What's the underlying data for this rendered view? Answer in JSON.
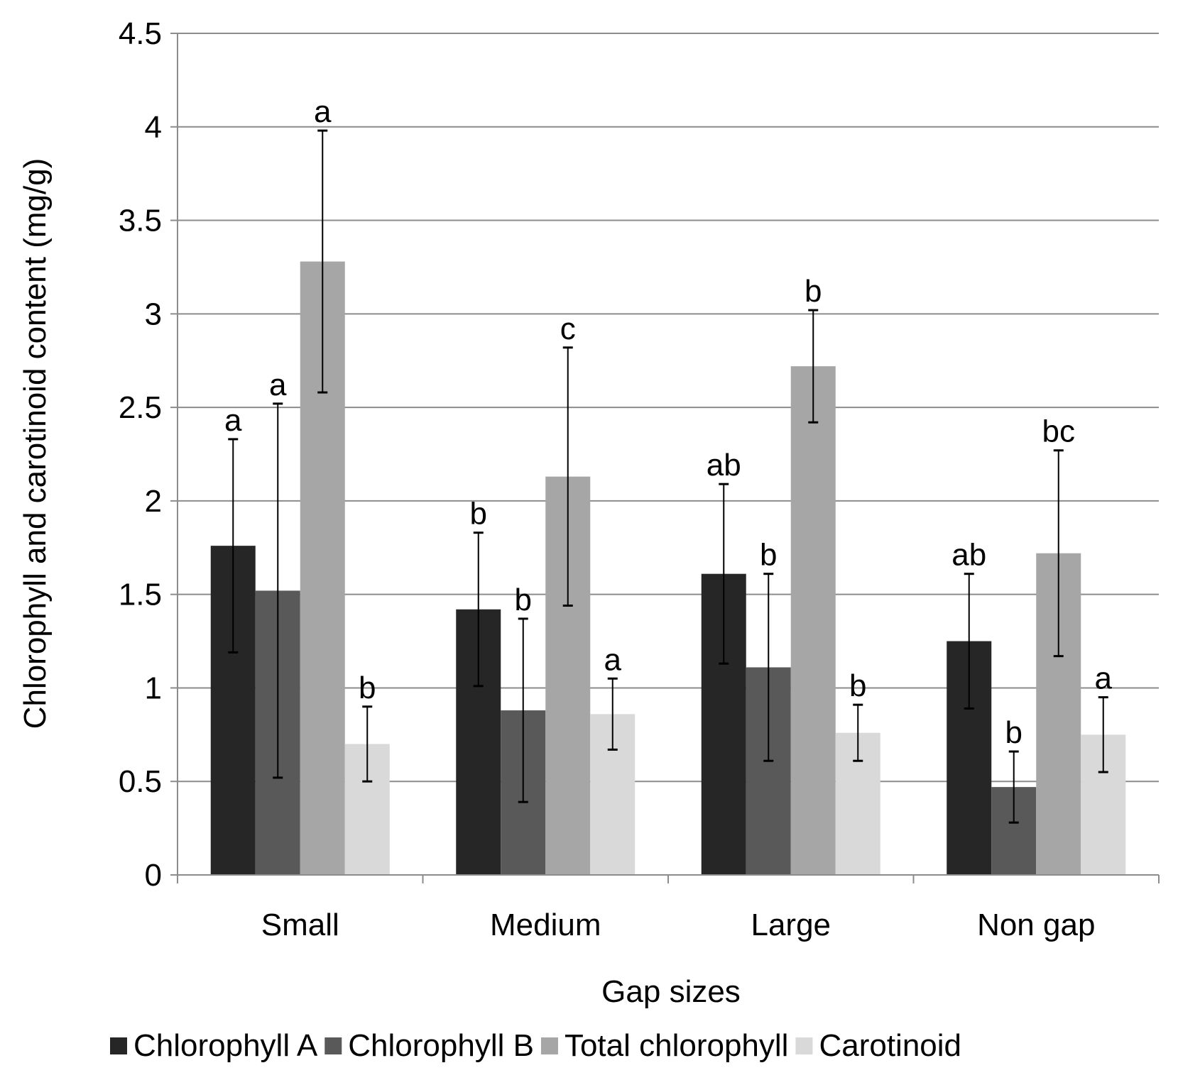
{
  "chart_data": {
    "type": "bar",
    "title": "",
    "xlabel": "Gap sizes",
    "ylabel": "Chlorophyll and carotinoid content (mg/g)",
    "ylim": [
      0,
      4.5
    ],
    "yticks": [
      "0",
      "0.5",
      "1",
      "1.5",
      "2",
      "2.5",
      "3",
      "3.5",
      "4",
      "4.5"
    ],
    "grid": true,
    "legend_position": "bottom",
    "categories": [
      "Small",
      "Medium",
      "Large",
      "Non gap"
    ],
    "series": [
      {
        "name": "Chlorophyll A",
        "color": "#262626",
        "values": [
          1.76,
          1.42,
          1.61,
          1.25
        ],
        "error": [
          0.57,
          0.41,
          0.48,
          0.36
        ],
        "labels": [
          "a",
          "b",
          "ab",
          "ab"
        ]
      },
      {
        "name": "Chlorophyll B",
        "color": "#595959",
        "values": [
          1.52,
          0.88,
          1.11,
          0.47
        ],
        "error": [
          1.0,
          0.49,
          0.5,
          0.19
        ],
        "labels": [
          "a",
          "b",
          "b",
          "b"
        ]
      },
      {
        "name": "Total chlorophyll",
        "color": "#a6a6a6",
        "values": [
          3.28,
          2.13,
          2.72,
          1.72
        ],
        "error": [
          0.7,
          0.69,
          0.3,
          0.55
        ],
        "labels": [
          "a",
          "c",
          "b",
          "bc"
        ]
      },
      {
        "name": "Carotinoid",
        "color": "#d9d9d9",
        "values": [
          0.7,
          0.86,
          0.76,
          0.75
        ],
        "error": [
          0.2,
          0.19,
          0.15,
          0.2
        ],
        "labels": [
          "b",
          "a",
          "b",
          "a"
        ]
      }
    ]
  }
}
